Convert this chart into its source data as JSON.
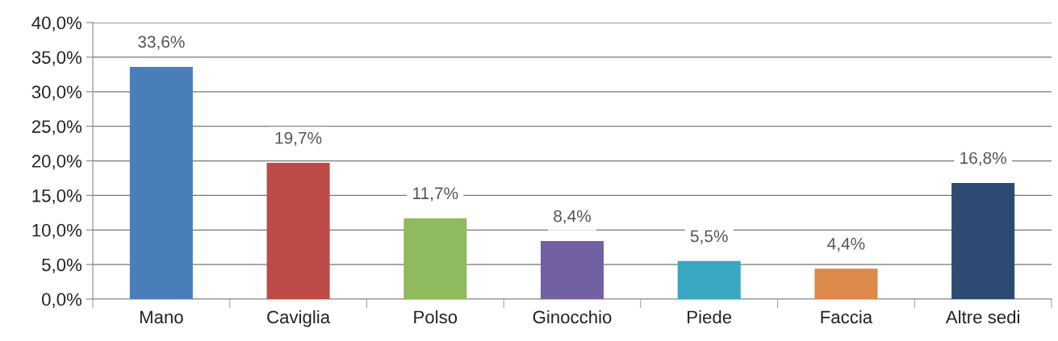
{
  "chart_data": {
    "type": "bar",
    "categories": [
      "Mano",
      "Caviglia",
      "Polso",
      "Ginocchio",
      "Piede",
      "Faccia",
      "Altre sedi"
    ],
    "values": [
      33.6,
      19.7,
      11.7,
      8.4,
      5.5,
      4.4,
      16.8
    ],
    "value_labels": [
      "33,6%",
      "19,7%",
      "11,7%",
      "8,4%",
      "5,5%",
      "4,4%",
      "16,8%"
    ],
    "colors": [
      "#4a7ebb",
      "#be4b48",
      "#8fbb5e",
      "#7260a3",
      "#3aa7c2",
      "#dc8a4a",
      "#2c4a72"
    ],
    "ylim": [
      0,
      40
    ],
    "yticks": [
      {
        "value": 0,
        "label": "0,0%"
      },
      {
        "value": 5,
        "label": "5,0%"
      },
      {
        "value": 10,
        "label": "10,0%"
      },
      {
        "value": 15,
        "label": "15,0%"
      },
      {
        "value": 20,
        "label": "20,0%"
      },
      {
        "value": 25,
        "label": "25,0%"
      },
      {
        "value": 30,
        "label": "30,0%"
      },
      {
        "value": 35,
        "label": "35,0%"
      },
      {
        "value": 40,
        "label": "40,0%"
      }
    ],
    "grid": "y",
    "legend": false
  }
}
